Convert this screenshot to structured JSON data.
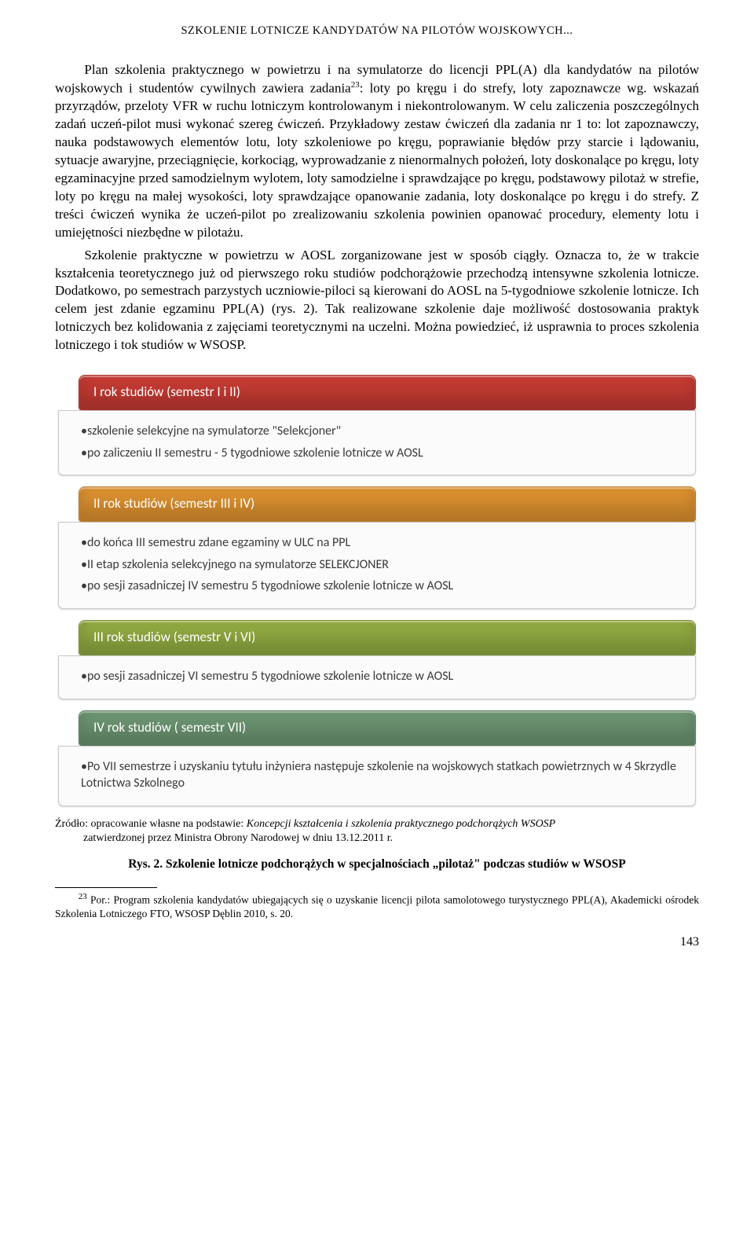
{
  "running_head": "SZKOLENIE LOTNICZE KANDYDATÓW NA PILOTÓW WOJSKOWYCH...",
  "para1": "Plan szkolenia praktycznego w powietrzu i na symulatorze do licencji PPL(A) dla kandydatów na pilotów wojskowych i studentów cywilnych zawiera zadania",
  "fn23_mark": "23",
  "para1b": ": loty po kręgu i do strefy, loty zapoznawcze wg. wskazań przyrządów, przeloty VFR w ruchu lotniczym kontrolowanym i niekontrolowanym. W celu zaliczenia poszczególnych zadań uczeń-pilot musi wykonać szereg ćwiczeń. Przykładowy zestaw ćwiczeń dla zadania nr 1 to: lot zapoznawczy, nauka podstawowych elementów lotu, loty szkoleniowe po kręgu, poprawianie błędów przy starcie i lądowaniu, sytuacje awaryjne, przeciągnięcie, korkociąg, wyprowadzanie z nienormalnych położeń, loty doskonalące po kręgu, loty egzaminacyjne przed samodzielnym wylotem, loty samodzielne i sprawdzające po kręgu, podstawowy pilotaż w strefie, loty po kręgu na małej wysokości, loty sprawdzające opanowanie zadania, loty doskonalące po kręgu i do strefy. Z treści ćwiczeń wynika że uczeń-pilot po zrealizowaniu szkolenia powinien opanować procedury, elementy lotu i umiejętności niezbędne w pilotażu.",
  "para2": "Szkolenie praktyczne w powietrzu w AOSL zorganizowane jest w sposób ciągły. Oznacza to, że w trakcie kształcenia teoretycznego już od pierwszego roku studiów podchorążowie przechodzą intensywne szkolenia lotnicze. Dodatkowo, po semestrach parzystych uczniowie-piloci są kierowani do AOSL na 5-tygodniowe szkolenie lotnicze. Ich celem jest zdanie egzaminu PPL(A) (rys. 2). Tak realizowane szkolenie daje możliwość dostosowania praktyk lotniczych bez kolidowania z zajęciami teoretycznymi na uczelni. Można powiedzieć, iż usprawnia to proces szkolenia lotniczego i tok studiów w WSOSP.",
  "diagram": {
    "blocks": [
      {
        "title": "I rok studiów (semestr I i II)",
        "color": "#c23a32",
        "items": [
          "•szkolenie selekcyjne na symulatorze \"Selekcjoner\"",
          "•po zaliczeniu II semestru - 5 tygodniowe szkolenie lotnicze w AOSL"
        ]
      },
      {
        "title": "II rok studiów (semestr III i IV)",
        "color": "#d98f2f",
        "items": [
          "•do końca III semestru zdane egzaminy w ULC na PPL",
          "•II etap szkolenia selekcyjnego na symulatorze SELEKCJONER",
          "•po sesji zasadniczej IV semestru 5 tygodniowe szkolenie lotnicze w AOSL"
        ]
      },
      {
        "title": "III rok studiów (semestr V i VI)",
        "color": "#8fa840",
        "items": [
          "•po sesji zasadniczej VI semestru 5 tygodniowe szkolenie lotnicze w AOSL"
        ]
      },
      {
        "title": "IV rok studiów  ( semestr VII)",
        "color": "#6a9270",
        "items": [
          "•Po VII semestrze i uzyskaniu tytułu inżyniera następuje szkolenie na wojskowych statkach powietrznych w 4 Skrzydle Lotnictwa Szkolnego"
        ]
      }
    ]
  },
  "source_a": "Źródło: opracowanie własne na podstawie: ",
  "source_i": "Koncepcji kształcenia i szkolenia praktycznego podchorążych WSOSP",
  "source_b": "zatwierdzonej przez Ministra Obrony Narodowej w dniu 13.12.2011 r.",
  "fig_prefix": "Rys. 2. Szkolenie lotnicze podchorążych w specjalnościach „pilotaż\" podczas studiów w WSOSP",
  "footnote": " Por.: Program szkolenia kandydatów ubiegających się o uzyskanie licencji pilota samolotowego turystycznego PPL(A), Akademicki ośrodek Szkolenia Lotniczego FTO, WSOSP Dęblin 2010, s. 20.",
  "page_num": "143"
}
